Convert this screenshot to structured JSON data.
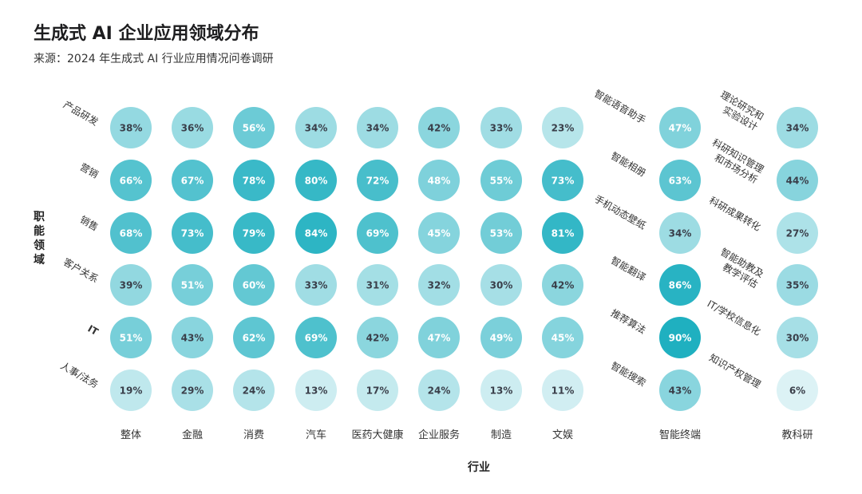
{
  "title": "生成式 AI 企业应用领域分布",
  "subtitle": "来源：2024 年生成式 AI 行业应用情况问卷调研",
  "chart_data": {
    "type": "heatmap",
    "xlabel": "行业",
    "ylabel": "职能领域",
    "main": {
      "rows": [
        "产品研发",
        "营销",
        "销售",
        "客户关系",
        "IT",
        "人事/法务"
      ],
      "columns": [
        "整体",
        "金融",
        "消费",
        "汽车",
        "医药大健康",
        "企业服务",
        "制造",
        "文娱"
      ],
      "values": [
        [
          38,
          36,
          56,
          34,
          34,
          42,
          33,
          23
        ],
        [
          66,
          67,
          78,
          80,
          72,
          48,
          55,
          73
        ],
        [
          68,
          73,
          79,
          84,
          69,
          45,
          53,
          81
        ],
        [
          39,
          51,
          60,
          33,
          31,
          32,
          30,
          42
        ],
        [
          51,
          43,
          62,
          69,
          42,
          47,
          49,
          45
        ],
        [
          19,
          29,
          24,
          13,
          17,
          24,
          13,
          11
        ]
      ]
    },
    "terminal": {
      "column": "智能终端",
      "rows": [
        "智能语音助手",
        "智能相册",
        "手机动态壁纸",
        "智能翻译",
        "推荐算法",
        "智能搜索"
      ],
      "values": [
        47,
        63,
        34,
        86,
        90,
        43
      ]
    },
    "research": {
      "column": "教科研",
      "rows": [
        [
          "理论研究和",
          "实验设计"
        ],
        [
          "科研知识管理",
          "和市场分析"
        ],
        [
          "科研成果转化"
        ],
        [
          "智能助教及",
          "教学评估"
        ],
        [
          "IT/学校信息化"
        ],
        [
          "知识产权管理"
        ]
      ],
      "values": [
        34,
        44,
        27,
        35,
        30,
        6
      ]
    },
    "value_suffix": "%",
    "color_scale": {
      "low": "#eaf7f9",
      "high": "#1fb0c0",
      "min": 0,
      "max": 90
    }
  }
}
